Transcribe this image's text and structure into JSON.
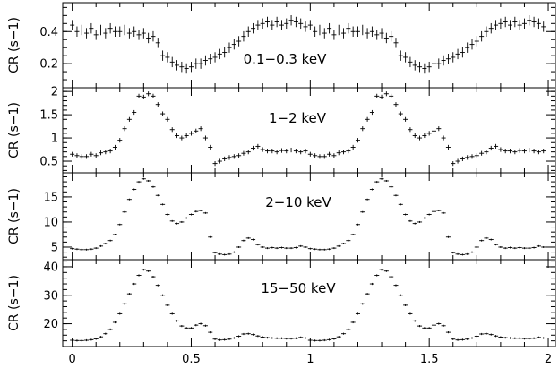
{
  "chart_data": {
    "type": "scatter",
    "title": "",
    "x_axis": {
      "range": [
        -0.04,
        2.03
      ],
      "ticks": [
        0,
        0.5,
        1,
        1.5,
        2
      ],
      "tick_labels": [
        "0",
        "0.5",
        "1",
        "1.5",
        "2"
      ],
      "label": ""
    },
    "panels": [
      {
        "id": "p1",
        "band_label": "0.1−0.3 keV",
        "ylabel": "CR (s−1)",
        "ylim": [
          0.05,
          0.58
        ],
        "yticks": [
          0.2,
          0.4
        ],
        "ytick_labels": [
          "0.2",
          "0.4"
        ],
        "minor_step": 0.05,
        "yerr": 0.032,
        "phases": [
          0,
          0.02,
          0.04,
          0.06,
          0.08,
          0.1,
          0.12,
          0.14,
          0.16,
          0.18,
          0.2,
          0.22,
          0.24,
          0.26,
          0.28,
          0.3,
          0.32,
          0.34,
          0.36,
          0.38,
          0.4,
          0.42,
          0.44,
          0.46,
          0.48,
          0.5,
          0.52,
          0.54,
          0.56,
          0.58,
          0.6,
          0.62,
          0.64,
          0.66,
          0.68,
          0.7,
          0.72,
          0.74,
          0.76,
          0.78,
          0.8,
          0.82,
          0.84,
          0.86,
          0.88,
          0.9,
          0.92,
          0.94,
          0.96,
          0.98
        ],
        "values": [
          0.44,
          0.4,
          0.41,
          0.39,
          0.42,
          0.38,
          0.41,
          0.39,
          0.42,
          0.4,
          0.4,
          0.41,
          0.39,
          0.4,
          0.38,
          0.39,
          0.36,
          0.37,
          0.33,
          0.25,
          0.24,
          0.21,
          0.19,
          0.18,
          0.17,
          0.18,
          0.2,
          0.2,
          0.22,
          0.23,
          0.24,
          0.26,
          0.27,
          0.3,
          0.32,
          0.34,
          0.37,
          0.4,
          0.42,
          0.44,
          0.45,
          0.46,
          0.44,
          0.46,
          0.44,
          0.45,
          0.47,
          0.46,
          0.45,
          0.43
        ]
      },
      {
        "id": "p2",
        "band_label": "1−2 keV",
        "ylabel": "CR (s−1)",
        "ylim": [
          0.25,
          2.08
        ],
        "yticks": [
          0.5,
          1,
          1.5,
          2
        ],
        "ytick_labels": [
          "0.5",
          "1",
          "1.5",
          "2"
        ],
        "minor_step": 0.1,
        "yerr": 0.05,
        "phases": [
          0,
          0.02,
          0.04,
          0.06,
          0.08,
          0.1,
          0.12,
          0.14,
          0.16,
          0.18,
          0.2,
          0.22,
          0.24,
          0.26,
          0.28,
          0.3,
          0.32,
          0.34,
          0.36,
          0.38,
          0.4,
          0.42,
          0.44,
          0.46,
          0.48,
          0.5,
          0.52,
          0.54,
          0.56,
          0.58,
          0.6,
          0.62,
          0.64,
          0.66,
          0.68,
          0.7,
          0.72,
          0.74,
          0.76,
          0.78,
          0.8,
          0.82,
          0.84,
          0.86,
          0.88,
          0.9,
          0.92,
          0.94,
          0.96,
          0.98
        ],
        "values": [
          0.65,
          0.62,
          0.6,
          0.6,
          0.65,
          0.62,
          0.68,
          0.7,
          0.72,
          0.8,
          0.95,
          1.2,
          1.4,
          1.55,
          1.9,
          1.88,
          1.95,
          1.9,
          1.72,
          1.52,
          1.4,
          1.18,
          1.05,
          1.0,
          1.05,
          1.1,
          1.15,
          1.2,
          1.0,
          0.8,
          0.45,
          0.5,
          0.55,
          0.58,
          0.6,
          0.62,
          0.67,
          0.7,
          0.78,
          0.82,
          0.75,
          0.72,
          0.72,
          0.7,
          0.73,
          0.72,
          0.74,
          0.72,
          0.7,
          0.72
        ]
      },
      {
        "id": "p3",
        "band_label": "2−10 keV",
        "ylabel": "CR (s−1)",
        "ylim": [
          2.5,
          19.8
        ],
        "yticks": [
          5,
          10,
          15
        ],
        "ytick_labels": [
          "5",
          "10",
          "15"
        ],
        "minor_step": 1,
        "yerr": 0.12,
        "phases": [
          0,
          0.02,
          0.04,
          0.06,
          0.08,
          0.1,
          0.12,
          0.14,
          0.16,
          0.18,
          0.2,
          0.22,
          0.24,
          0.26,
          0.28,
          0.3,
          0.32,
          0.34,
          0.36,
          0.38,
          0.4,
          0.42,
          0.44,
          0.46,
          0.48,
          0.5,
          0.52,
          0.54,
          0.56,
          0.58,
          0.6,
          0.62,
          0.64,
          0.66,
          0.68,
          0.7,
          0.72,
          0.74,
          0.76,
          0.78,
          0.8,
          0.82,
          0.84,
          0.86,
          0.88,
          0.9,
          0.92,
          0.94,
          0.96,
          0.98
        ],
        "values": [
          4.7,
          4.6,
          4.5,
          4.5,
          4.6,
          4.8,
          5.2,
          5.7,
          6.3,
          7.5,
          9.5,
          12.0,
          14.5,
          16.5,
          18.0,
          18.6,
          18.2,
          17.0,
          15.3,
          13.5,
          11.5,
          10.2,
          9.7,
          10.0,
          10.8,
          11.5,
          12.1,
          12.3,
          11.8,
          7.0,
          3.9,
          3.6,
          3.5,
          3.6,
          4.0,
          5.0,
          6.3,
          6.8,
          6.5,
          5.5,
          5.0,
          4.8,
          4.9,
          4.8,
          4.9,
          4.8,
          4.8,
          4.9,
          5.2,
          5.0
        ]
      },
      {
        "id": "p4",
        "band_label": "15−50 keV",
        "ylabel": "CR (s−1)",
        "ylim": [
          12.0,
          42.5
        ],
        "yticks": [
          20,
          30,
          40
        ],
        "ytick_labels": [
          "20",
          "30",
          "40"
        ],
        "minor_step": 2,
        "yerr": 0.35,
        "phases": [
          0,
          0.02,
          0.04,
          0.06,
          0.08,
          0.1,
          0.12,
          0.14,
          0.16,
          0.18,
          0.2,
          0.22,
          0.24,
          0.26,
          0.28,
          0.3,
          0.32,
          0.34,
          0.36,
          0.38,
          0.4,
          0.42,
          0.44,
          0.46,
          0.48,
          0.5,
          0.52,
          0.54,
          0.56,
          0.58,
          0.6,
          0.62,
          0.64,
          0.66,
          0.68,
          0.7,
          0.72,
          0.74,
          0.76,
          0.78,
          0.8,
          0.82,
          0.84,
          0.86,
          0.88,
          0.9,
          0.92,
          0.94,
          0.96,
          0.98
        ],
        "values": [
          14.2,
          14.1,
          14.1,
          14.2,
          14.4,
          14.7,
          15.4,
          16.5,
          18.0,
          20.5,
          23.5,
          27.0,
          30.5,
          34.0,
          37.0,
          39.0,
          38.5,
          36.5,
          33.5,
          30.0,
          26.5,
          23.5,
          21.0,
          19.2,
          18.5,
          18.5,
          19.5,
          20.0,
          19.3,
          17.0,
          14.6,
          14.3,
          14.4,
          14.6,
          15.0,
          15.6,
          16.4,
          16.5,
          16.2,
          15.7,
          15.3,
          15.1,
          15.0,
          14.9,
          14.9,
          14.8,
          14.8,
          14.9,
          15.2,
          15.0
        ]
      }
    ]
  }
}
